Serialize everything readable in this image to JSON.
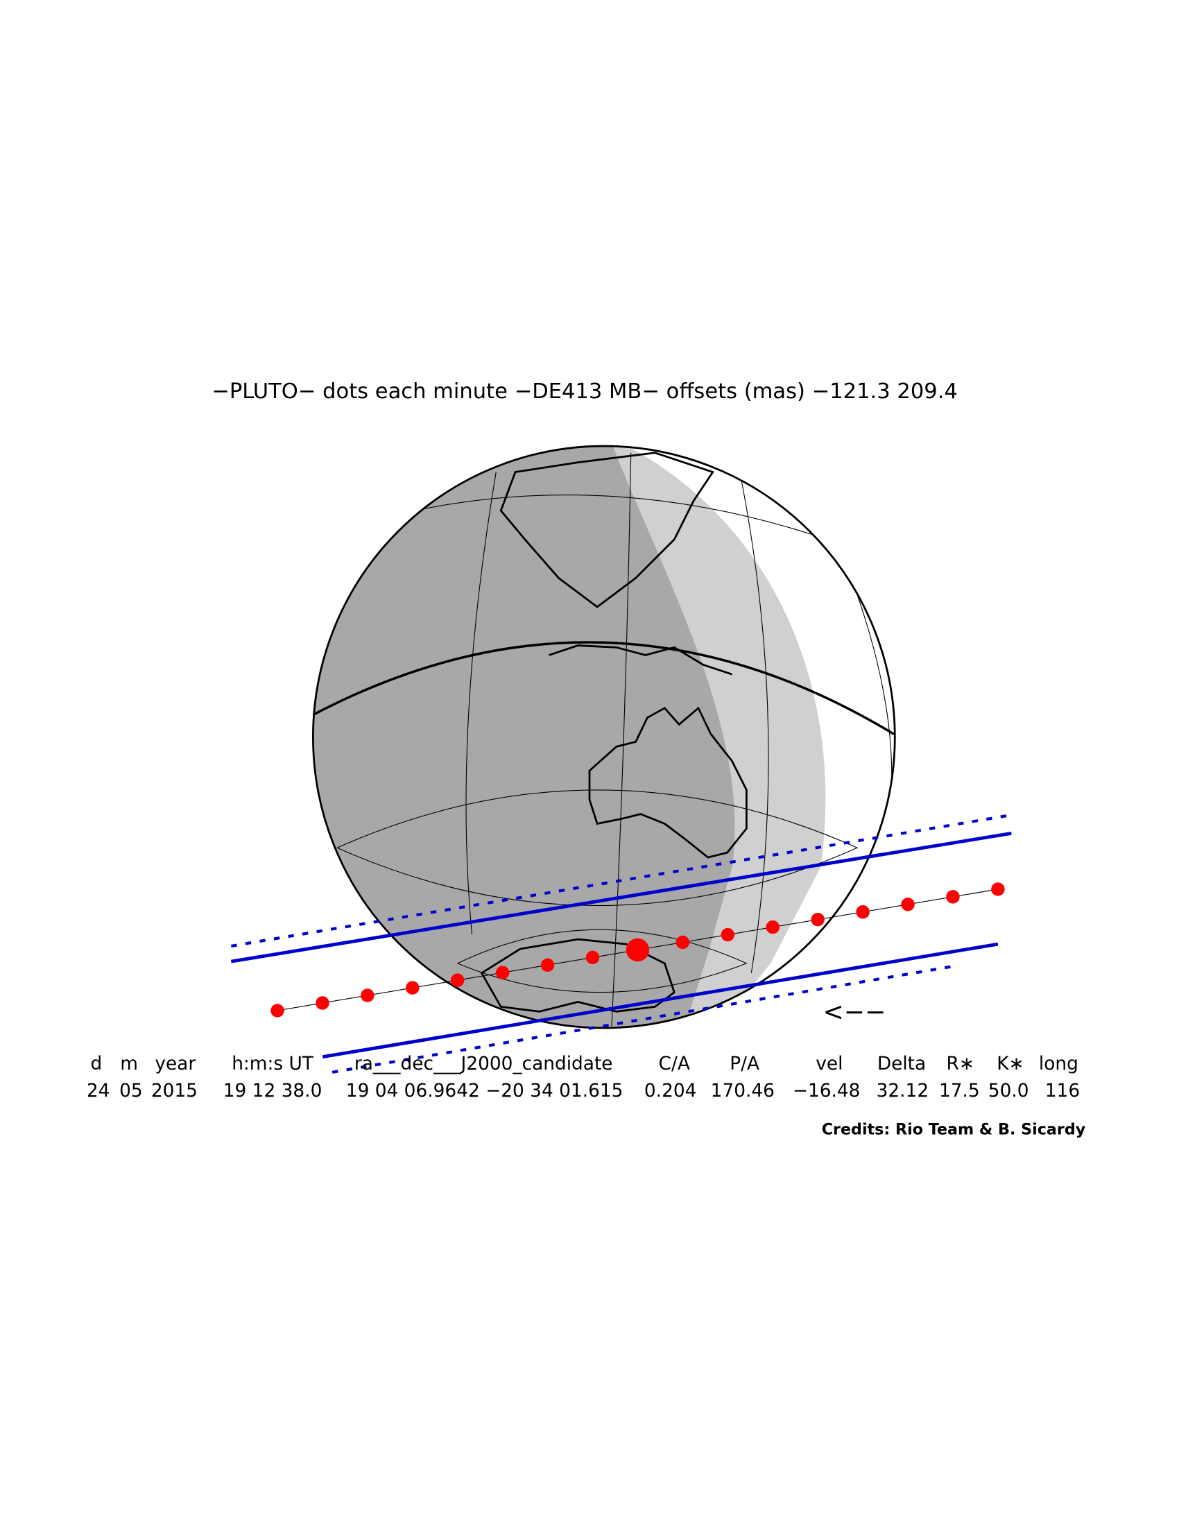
{
  "title": "−PLUTO− dots each minute −DE413 MB− offsets (mas) −121.3  209.4",
  "table": {
    "headers": [
      "d",
      "m",
      "year",
      "h:m:s UT",
      "ra___dec___J2000_candidate",
      "C/A",
      "P/A",
      "vel",
      "Delta",
      "R∗",
      "K∗",
      "long"
    ],
    "rows": [
      [
        "24",
        "05",
        "2015",
        "19 12 38.0",
        "19 04 06.9642 −20 34 01.615",
        "0.204",
        "170.46",
        "−16.48",
        "32.12",
        "17.5",
        "50.0",
        "116"
      ]
    ]
  },
  "direction_label": "<−−",
  "credits": "Credits: Rio Team & B. Sicardy"
}
